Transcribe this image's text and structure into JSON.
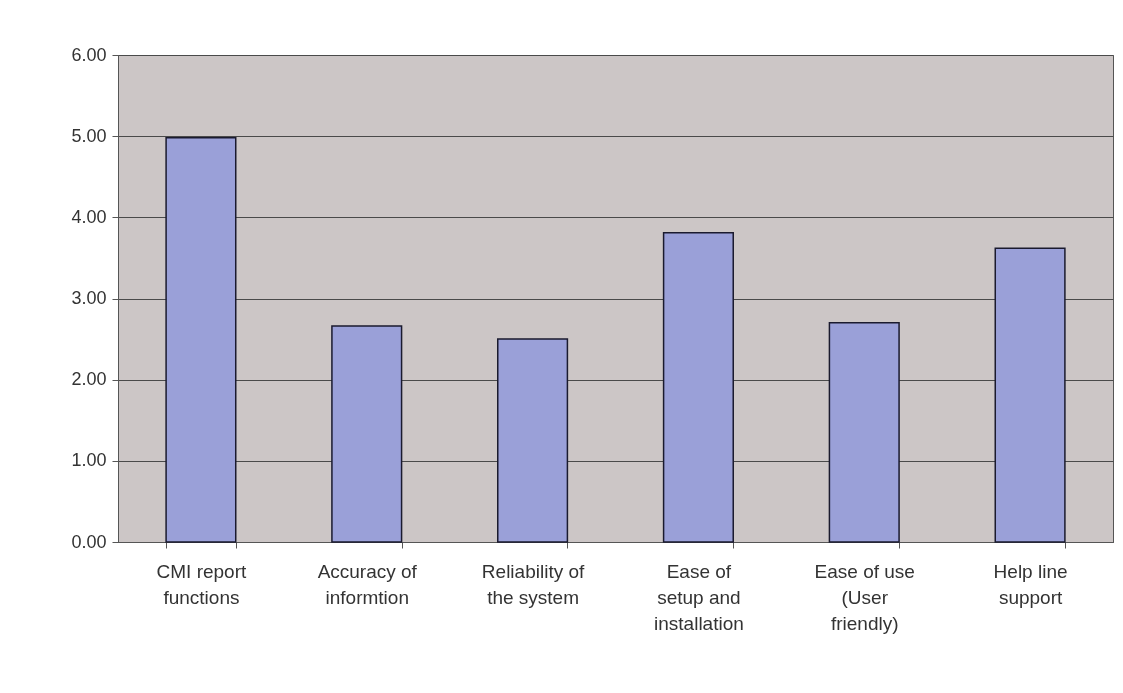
{
  "chart_data": {
    "type": "bar",
    "categories": [
      "CMI report\nfunctions",
      "Accuracy of\ninformtion",
      "Reliability of\nthe system",
      "Ease of\nsetup and\ninstallation",
      "Ease of use\n(User\nfriendly)",
      "Help line\nsupport"
    ],
    "values": [
      4.98,
      2.66,
      2.5,
      3.81,
      2.7,
      3.62
    ],
    "color": "#9aa0d8",
    "ylim": [
      0,
      6
    ],
    "yticks": [
      {
        "value": 0,
        "label": "0.00"
      },
      {
        "value": 1,
        "label": "1.00"
      },
      {
        "value": 2,
        "label": "2.00"
      },
      {
        "value": 3,
        "label": "3.00"
      },
      {
        "value": 4,
        "label": "4.00"
      },
      {
        "value": 5,
        "label": "5.00"
      },
      {
        "value": 6,
        "label": "6.00"
      }
    ],
    "grid": "y"
  }
}
